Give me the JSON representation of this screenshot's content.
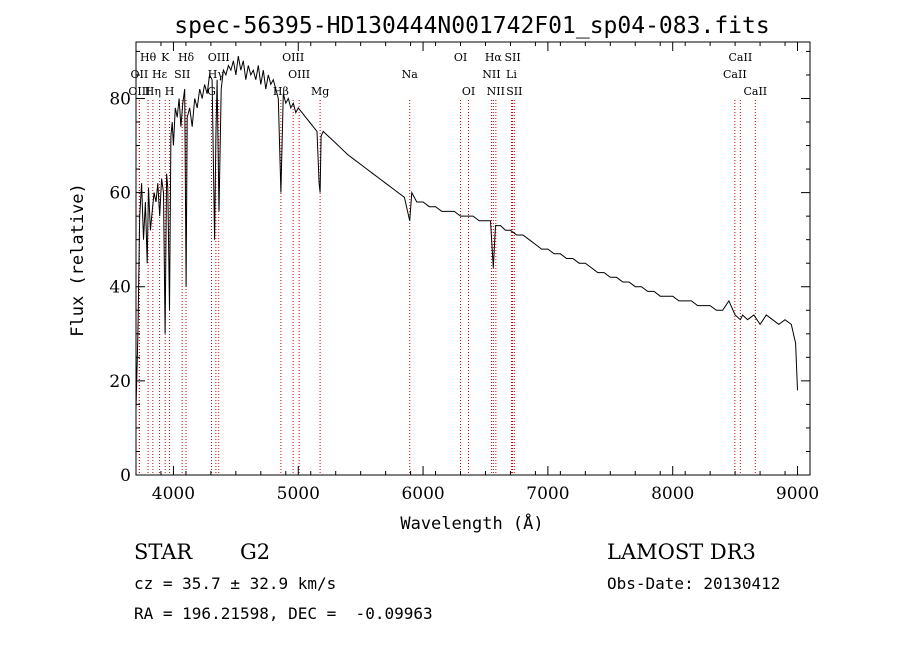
{
  "chart_data": {
    "type": "line",
    "title": "spec-56395-HD130444N001742F01_sp04-083.fits",
    "xlabel": "Wavelength (Å)",
    "ylabel": "Flux (relative)",
    "xlim": [
      3700,
      9100
    ],
    "ylim": [
      0,
      92
    ],
    "xticks": [
      4000,
      5000,
      6000,
      7000,
      8000,
      9000
    ],
    "yticks": [
      0,
      20,
      40,
      60,
      80
    ],
    "series": [
      {
        "name": "spectrum",
        "x": [
          3700,
          3715,
          3730,
          3745,
          3760,
          3775,
          3790,
          3800,
          3815,
          3830,
          3845,
          3860,
          3875,
          3890,
          3905,
          3920,
          3933,
          3945,
          3955,
          3968,
          3980,
          3990,
          4000,
          4015,
          4030,
          4045,
          4060,
          4075,
          4090,
          4101,
          4110,
          4130,
          4150,
          4170,
          4190,
          4210,
          4230,
          4250,
          4270,
          4290,
          4310,
          4330,
          4340,
          4350,
          4365,
          4383,
          4400,
          4420,
          4440,
          4460,
          4480,
          4500,
          4520,
          4540,
          4560,
          4580,
          4600,
          4620,
          4640,
          4660,
          4680,
          4700,
          4720,
          4740,
          4760,
          4780,
          4800,
          4820,
          4840,
          4861,
          4880,
          4900,
          4920,
          4940,
          4960,
          4980,
          5000,
          5030,
          5060,
          5090,
          5120,
          5150,
          5167,
          5175,
          5183,
          5200,
          5240,
          5280,
          5320,
          5360,
          5400,
          5450,
          5500,
          5550,
          5600,
          5650,
          5700,
          5750,
          5800,
          5850,
          5893,
          5910,
          5950,
          6000,
          6050,
          6100,
          6150,
          6200,
          6250,
          6300,
          6350,
          6400,
          6450,
          6500,
          6540,
          6563,
          6580,
          6620,
          6660,
          6700,
          6750,
          6800,
          6850,
          6900,
          6950,
          7000,
          7050,
          7100,
          7150,
          7200,
          7250,
          7300,
          7350,
          7400,
          7450,
          7500,
          7550,
          7600,
          7650,
          7700,
          7750,
          7800,
          7850,
          7900,
          7950,
          8000,
          8050,
          8100,
          8150,
          8200,
          8250,
          8300,
          8350,
          8400,
          8450,
          8500,
          8542,
          8560,
          8600,
          8650,
          8700,
          8750,
          8800,
          8850,
          8900,
          8950,
          8985,
          9000
        ],
        "y": [
          14,
          30,
          55,
          62,
          50,
          58,
          45,
          61,
          52,
          56,
          60,
          58,
          62,
          55,
          63,
          60,
          30,
          64,
          61,
          35,
          72,
          75,
          70,
          78,
          76,
          80,
          74,
          79,
          82,
          40,
          76,
          78,
          74,
          80,
          78,
          82,
          80,
          83,
          81,
          85,
          84,
          50,
          72,
          84,
          56,
          82,
          86,
          85,
          87,
          86,
          88,
          85,
          89,
          86,
          88,
          84,
          87,
          85,
          86,
          84,
          87,
          83,
          86,
          82,
          85,
          83,
          84,
          82,
          80,
          60,
          81,
          79,
          80,
          78,
          79,
          77,
          78,
          77,
          76,
          75,
          74,
          73,
          62,
          60,
          72,
          73,
          72,
          71,
          70,
          69,
          68,
          67,
          66,
          65,
          64,
          63,
          62,
          61,
          60,
          59,
          54,
          60,
          58,
          58,
          57,
          57,
          56,
          56,
          56,
          55,
          55,
          55,
          54,
          54,
          54,
          44,
          53,
          53,
          52,
          52,
          51,
          51,
          50,
          49,
          48,
          48,
          47,
          47,
          46,
          46,
          45,
          45,
          44,
          43,
          43,
          42,
          42,
          41,
          41,
          40,
          40,
          39,
          39,
          38,
          38,
          38,
          37,
          37,
          37,
          36,
          36,
          36,
          35,
          35,
          37,
          34,
          33,
          34,
          33,
          34,
          32,
          34,
          33,
          32,
          33,
          32,
          28,
          18
        ]
      }
    ],
    "lines": [
      {
        "label": "Hθ",
        "wl": 3797,
        "row": 1
      },
      {
        "label": "OII",
        "wl": 3727,
        "row": 2
      },
      {
        "label": "OIII",
        "wl": 3727,
        "row": 3
      },
      {
        "label": "Hη",
        "wl": 3835,
        "row": 3
      },
      {
        "label": "Hε",
        "wl": 3889,
        "row": 2
      },
      {
        "label": "K",
        "wl": 3934,
        "row": 1
      },
      {
        "label": "H",
        "wl": 3969,
        "row": 3
      },
      {
        "label": "SII",
        "wl": 4070,
        "row": 2
      },
      {
        "label": "Hδ",
        "wl": 4101,
        "row": 1
      },
      {
        "label": "OIII",
        "wl": 4363,
        "row": 1
      },
      {
        "label": "Hγ",
        "wl": 4340,
        "row": 2
      },
      {
        "label": "G",
        "wl": 4305,
        "row": 3
      },
      {
        "label": "OIII",
        "wl": 4959,
        "row": 1
      },
      {
        "label": "OIII",
        "wl": 5007,
        "row": 2
      },
      {
        "label": "Hβ",
        "wl": 4861,
        "row": 3
      },
      {
        "label": "Mg",
        "wl": 5175,
        "row": 3
      },
      {
        "label": "Na",
        "wl": 5893,
        "row": 2
      },
      {
        "label": "OI",
        "wl": 6300,
        "row": 1
      },
      {
        "label": "OI",
        "wl": 6364,
        "row": 3
      },
      {
        "label": "Hα",
        "wl": 6563,
        "row": 1
      },
      {
        "label": "SII",
        "wl": 6717,
        "row": 1
      },
      {
        "label": "NII",
        "wl": 6548,
        "row": 2
      },
      {
        "label": "Li",
        "wl": 6708,
        "row": 2
      },
      {
        "label": "NII",
        "wl": 6583,
        "row": 3
      },
      {
        "label": "SII",
        "wl": 6731,
        "row": 3
      },
      {
        "label": "CaII",
        "wl": 8542,
        "row": 1
      },
      {
        "label": "CaII",
        "wl": 8498,
        "row": 2
      },
      {
        "label": "CaII",
        "wl": 8662,
        "row": 3
      }
    ]
  },
  "info": {
    "class": "STAR",
    "subclass": "G2",
    "cz": "cz = 35.7 ± 32.9 km/s",
    "coords": "RA = 196.21598, DEC =  -0.09963",
    "survey": "LAMOST DR3",
    "obs_date": "Obs-Date: 20130412"
  },
  "colors": {
    "line": "#cc0000",
    "spectrum": "#000000"
  }
}
